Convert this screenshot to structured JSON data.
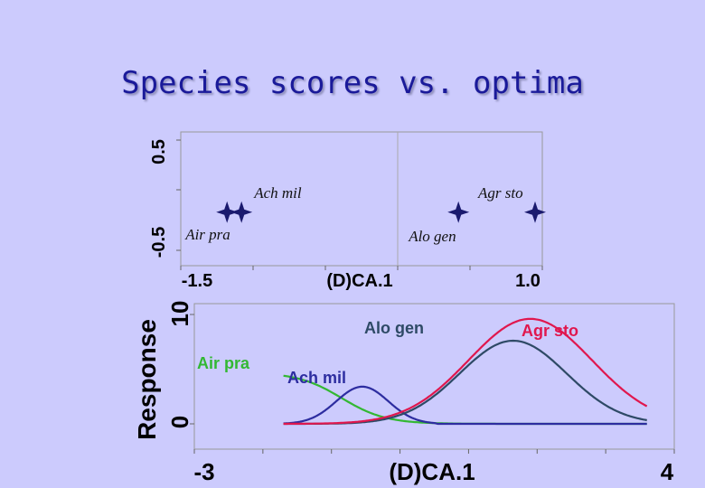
{
  "slide": {
    "title": "Species scores vs. optima"
  },
  "chart_data": [
    {
      "type": "scatter",
      "title": "",
      "xlabel": "(D)CA.1",
      "ylabel": "",
      "xlim": [
        -1.5,
        1.0
      ],
      "ylim": [
        -0.5,
        0.5
      ],
      "xtick_labels": [
        "-1.5",
        "(D)CA.1",
        "1.0"
      ],
      "ytick_labels": [
        "0.5",
        "-0.5"
      ],
      "marker_color": "#1a1a6e",
      "points": [
        {
          "label": "Air pra",
          "x": -1.18,
          "y": -0.1
        },
        {
          "label": "Ach mil",
          "x": -1.08,
          "y": -0.1
        },
        {
          "label": "Alo gen",
          "x": 0.42,
          "y": -0.1
        },
        {
          "label": "Agr sto",
          "x": 0.95,
          "y": -0.1
        }
      ]
    },
    {
      "type": "line",
      "title": "",
      "xlabel": "(D)CA.1",
      "ylabel": "Response",
      "xlim": [
        -3,
        4
      ],
      "ylim": [
        0,
        10
      ],
      "xtick_labels": [
        "-3",
        "(D)CA.1",
        "4"
      ],
      "ytick_labels": [
        "10",
        "0"
      ],
      "series": [
        {
          "name": "Air pra",
          "color": "#33b833",
          "type": "logistic-decline",
          "start_x": -1.7,
          "start_y": 4.4,
          "mid": -0.85,
          "scale": 0.32
        },
        {
          "name": "Ach mil",
          "color": "#2d2da0",
          "type": "gaussian",
          "optimum": -0.55,
          "tolerance": 0.38,
          "max": 3.4,
          "start_x": -1.7,
          "end_x": 0.5
        },
        {
          "name": "Alo gen",
          "color": "#2e4a66",
          "type": "gaussian",
          "optimum": 1.65,
          "tolerance": 0.78,
          "max": 7.6,
          "start_x": -1.7,
          "end_x": 3.6
        },
        {
          "name": "Agr sto",
          "color": "#e0174e",
          "type": "gaussian",
          "optimum": 1.9,
          "tolerance": 0.9,
          "max": 9.6,
          "start_x": -1.7,
          "end_x": 3.6
        }
      ]
    }
  ]
}
